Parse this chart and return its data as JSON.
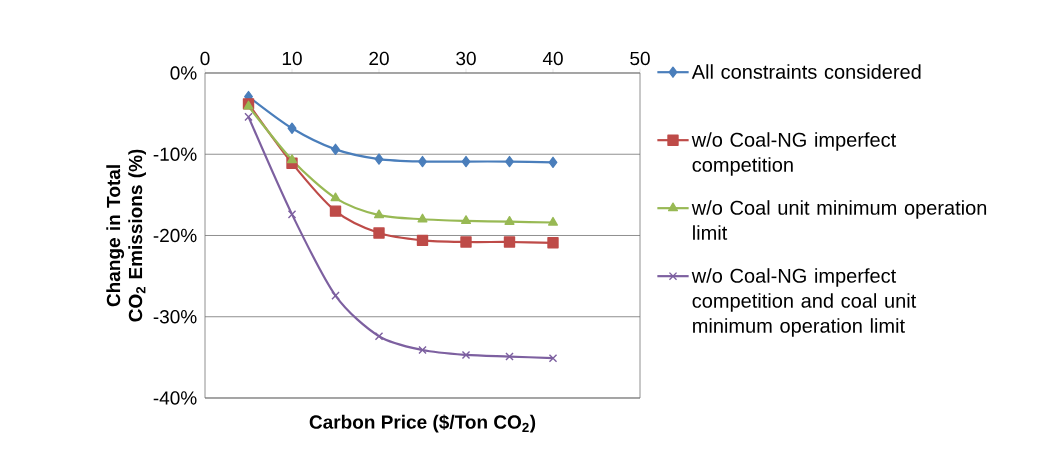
{
  "chart_data": {
    "type": "line",
    "xlabel": "Carbon Price ($/Ton CO$_{2}$)",
    "ylabel": "Change in Total CO$_{2}$ Emissions (%)",
    "x": [
      5,
      10,
      15,
      20,
      25,
      30,
      35,
      40
    ],
    "xlim": [
      0,
      50
    ],
    "xticks": [
      0,
      10,
      20,
      30,
      40,
      50
    ],
    "ylim": [
      -40,
      0
    ],
    "yticks": [
      {
        "value": -40,
        "label": "-40%"
      },
      {
        "value": -30,
        "label": "-30%"
      },
      {
        "value": -20,
        "label": "-20%"
      },
      {
        "value": -10,
        "label": "-10%"
      },
      {
        "value": 0,
        "label": "0%"
      }
    ],
    "grid": "y",
    "legend": "right",
    "line_style": "solid",
    "series": [
      {
        "name": "All constraints considered",
        "color": "#4a7ebb",
        "marker": "diamond",
        "values": [
          -2.9,
          -6.8,
          -9.4,
          -10.6,
          -10.9,
          -10.9,
          -10.9,
          -11.0
        ]
      },
      {
        "name": "w/o Coal-NG imperfect competition",
        "color": "#be4b48",
        "marker": "square",
        "values": [
          -3.8,
          -11.1,
          -17.0,
          -19.7,
          -20.6,
          -20.8,
          -20.8,
          -20.9
        ]
      },
      {
        "name": "w/o Coal unit minimum operation limit",
        "color": "#98b954",
        "marker": "triangle",
        "values": [
          -4.1,
          -10.7,
          -15.4,
          -17.5,
          -18.0,
          -18.2,
          -18.3,
          -18.4
        ]
      },
      {
        "name": "w/o Coal-NG imperfect competition and coal unit minimum operation limit",
        "color": "#7d60a0",
        "marker": "cross",
        "values": [
          -5.4,
          -17.4,
          -27.4,
          -32.4,
          -34.1,
          -34.7,
          -34.9,
          -35.1
        ]
      }
    ]
  }
}
